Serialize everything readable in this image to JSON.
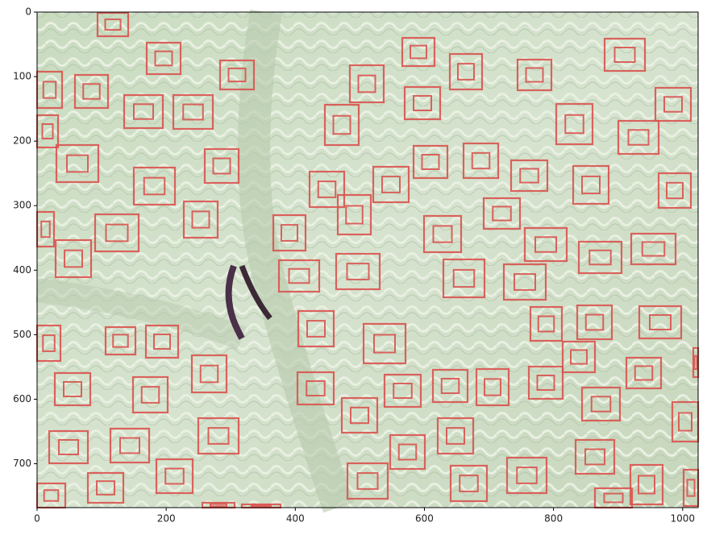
{
  "chart_data": {
    "type": "image",
    "xlim": [
      0,
      1024
    ],
    "ylim": [
      768,
      0
    ],
    "xticks": [
      0,
      200,
      400,
      600,
      800,
      1000
    ],
    "yticks": [
      0,
      100,
      200,
      300,
      400,
      500,
      600,
      700
    ],
    "box_color": "#d9534f"
  }
}
